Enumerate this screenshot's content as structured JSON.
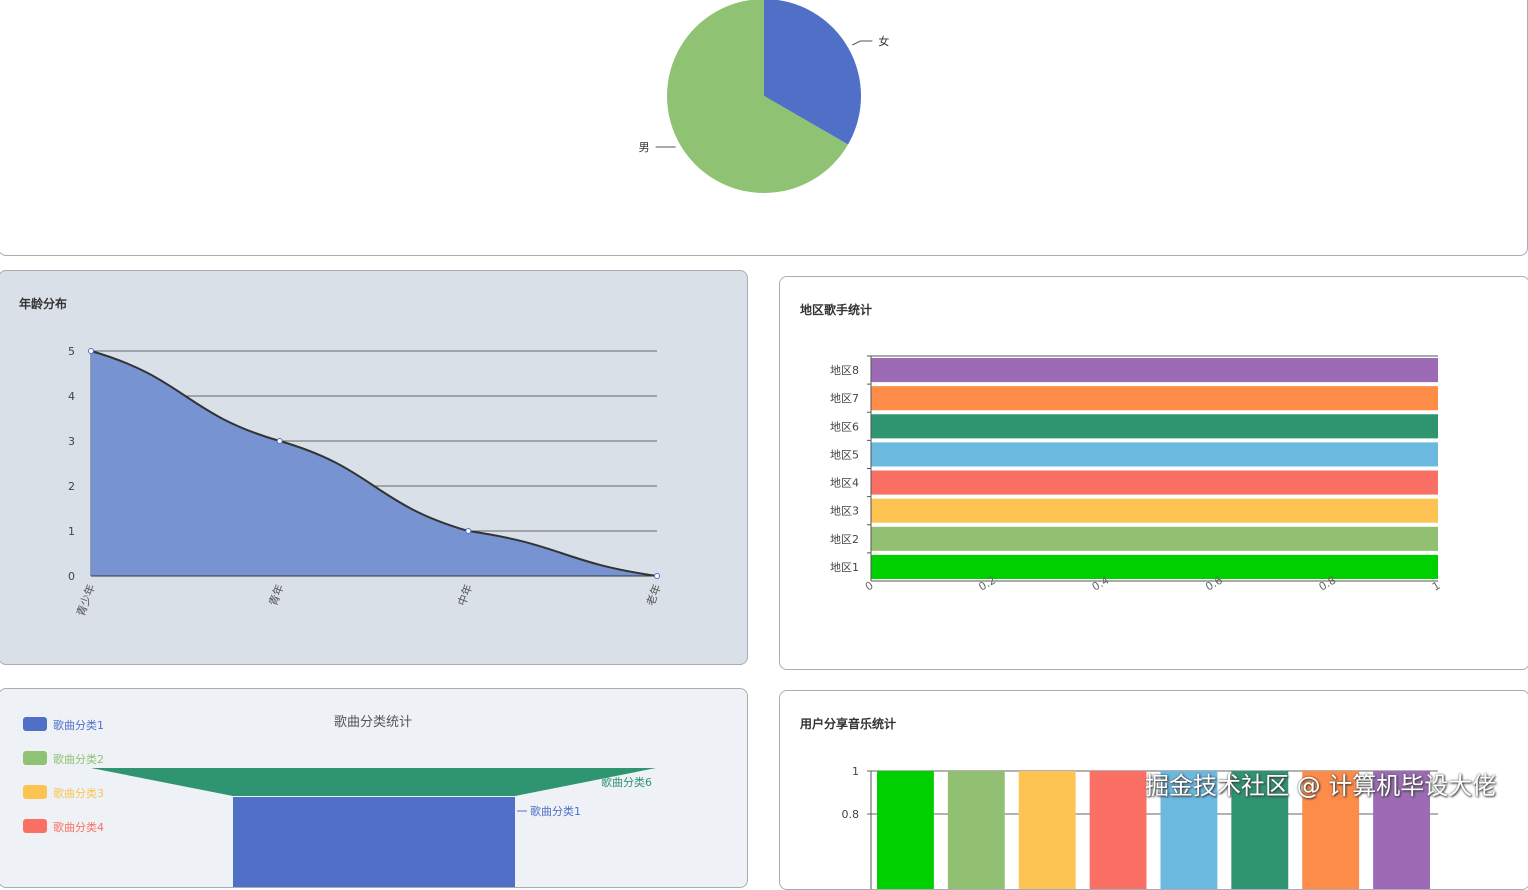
{
  "watermark": "掘金技术社区 @ 计算机毕设大佬",
  "chart_data": [
    {
      "type": "pie",
      "title": "",
      "labels": [
        "女",
        "男"
      ],
      "values": [
        1,
        2
      ],
      "colors": [
        "#5070c8",
        "#8fc273"
      ]
    },
    {
      "type": "area",
      "title": "年龄分布",
      "categories": [
        "青少年",
        "青年",
        "中年",
        "老年"
      ],
      "values": [
        5,
        3,
        1,
        0
      ],
      "ylim": [
        0,
        5
      ],
      "yticks": [
        0,
        1,
        2,
        3,
        4,
        5
      ],
      "color": "#7893d2"
    },
    {
      "type": "bar",
      "orientation": "horizontal",
      "title": "地区歌手统计",
      "categories": [
        "地区1",
        "地区2",
        "地区3",
        "地区4",
        "地区5",
        "地区6",
        "地区7",
        "地区8"
      ],
      "values": [
        1,
        1,
        1,
        1,
        1,
        1,
        1,
        1
      ],
      "xlim": [
        0,
        1
      ],
      "xticks": [
        "0",
        "0.2",
        "0.4",
        "0.6",
        "0.8",
        "1"
      ],
      "colors": [
        "#00d000",
        "#91c072",
        "#fdc453",
        "#fb7064",
        "#6cb9e0",
        "#2f9470",
        "#fd8c49",
        "#9d6bb6"
      ]
    },
    {
      "type": "funnel",
      "title": "歌曲分类统计",
      "legend": [
        "歌曲分类1",
        "歌曲分类2",
        "歌曲分类3",
        "歌曲分类4"
      ],
      "legend_colors": [
        "#5070c8",
        "#8fc273",
        "#fdc453",
        "#fb7064"
      ],
      "visible_segments": [
        {
          "name": "歌曲分类6",
          "color": "#2f9470"
        },
        {
          "name": "歌曲分类1",
          "color": "#5070c8"
        }
      ]
    },
    {
      "type": "bar",
      "title": "用户分享音乐统计",
      "values": [
        1,
        1,
        1,
        1,
        1,
        1,
        1,
        1
      ],
      "yticks": [
        "1",
        "0.8"
      ],
      "colors": [
        "#00d000",
        "#91c072",
        "#fdc453",
        "#fb7064",
        "#6cb9e0",
        "#2f9470",
        "#fd8c49",
        "#9d6bb6"
      ]
    }
  ]
}
